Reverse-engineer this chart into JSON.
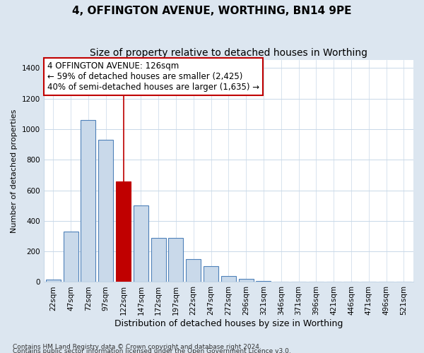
{
  "title": "4, OFFINGTON AVENUE, WORTHING, BN14 9PE",
  "subtitle": "Size of property relative to detached houses in Worthing",
  "xlabel": "Distribution of detached houses by size in Worthing",
  "ylabel": "Number of detached properties",
  "footnote1": "Contains HM Land Registry data © Crown copyright and database right 2024.",
  "footnote2": "Contains public sector information licensed under the Open Government Licence v3.0.",
  "bar_labels": [
    "22sqm",
    "47sqm",
    "72sqm",
    "97sqm",
    "122sqm",
    "147sqm",
    "172sqm",
    "197sqm",
    "222sqm",
    "247sqm",
    "272sqm",
    "296sqm",
    "321sqm",
    "346sqm",
    "371sqm",
    "396sqm",
    "421sqm",
    "446sqm",
    "471sqm",
    "496sqm",
    "521sqm"
  ],
  "bar_values": [
    15,
    330,
    1060,
    930,
    660,
    500,
    290,
    290,
    150,
    105,
    40,
    20,
    5,
    2,
    1,
    1,
    0,
    0,
    0,
    0,
    0
  ],
  "bar_color": "#c9d9ea",
  "bar_edge_color": "#4f81b9",
  "highlight_bar_index": 4,
  "highlight_color": "#c00000",
  "annotation_line1": "4 OFFINGTON AVENUE: 126sqm",
  "annotation_line2": "← 59% of detached houses are smaller (2,425)",
  "annotation_line3": "40% of semi-detached houses are larger (1,635) →",
  "ylim": [
    0,
    1450
  ],
  "yticks": [
    0,
    200,
    400,
    600,
    800,
    1000,
    1200,
    1400
  ],
  "figure_bg": "#dce6f0",
  "plot_bg": "#ffffff",
  "grid_color": "#c8d8e8",
  "title_fontsize": 11,
  "subtitle_fontsize": 10,
  "xlabel_fontsize": 9,
  "ylabel_fontsize": 8,
  "tick_fontsize": 7.5,
  "annotation_fontsize": 8.5,
  "footnote_fontsize": 6.5
}
